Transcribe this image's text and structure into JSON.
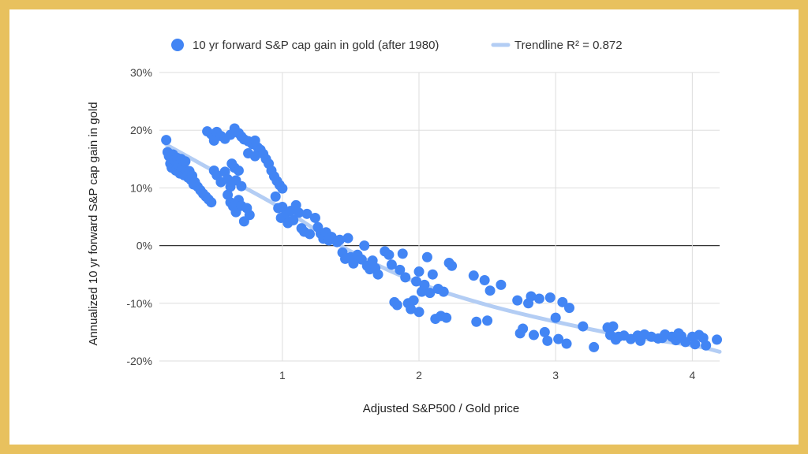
{
  "chart_data": {
    "type": "scatter",
    "xlabel": "Adjusted S&P500 / Gold price",
    "ylabel": "Annualized 10 yr forward S&P cap gain in gold",
    "xlim": [
      0.1,
      4.2
    ],
    "ylim": [
      -20,
      30
    ],
    "x_ticks": [
      1,
      2,
      3,
      4
    ],
    "x_tick_labels": [
      "1",
      "2",
      "3",
      "4"
    ],
    "y_ticks": [
      -20,
      -10,
      0,
      10,
      20,
      30
    ],
    "y_tick_labels": [
      "-20%",
      "-10%",
      "0%",
      "10%",
      "20%",
      "30%"
    ],
    "grid": true,
    "legend_position": "top",
    "legend": [
      {
        "label": "10 yr forward S&P cap gain in gold (after 1980)",
        "marker": "point"
      },
      {
        "label": "Trendline R² = 0.872",
        "marker": "line"
      }
    ],
    "colors": {
      "points": "#4285f4",
      "trendline": "#b3cdf4",
      "zero_line": "#333333",
      "grid": "#dddddd",
      "frame": "#e8c15e"
    },
    "series": [
      {
        "name": "10 yr forward S&P cap gain in gold (after 1980)",
        "points": [
          [
            0.15,
            18.3
          ],
          [
            0.16,
            16.2
          ],
          [
            0.17,
            15.5
          ],
          [
            0.18,
            14.2
          ],
          [
            0.19,
            13.5
          ],
          [
            0.2,
            15.8
          ],
          [
            0.21,
            14.8
          ],
          [
            0.22,
            13.0
          ],
          [
            0.23,
            15.2
          ],
          [
            0.24,
            14.0
          ],
          [
            0.25,
            12.5
          ],
          [
            0.26,
            15.0
          ],
          [
            0.27,
            13.6
          ],
          [
            0.28,
            12.2
          ],
          [
            0.29,
            14.6
          ],
          [
            0.3,
            13.0
          ],
          [
            0.31,
            11.8
          ],
          [
            0.32,
            12.9
          ],
          [
            0.33,
            11.4
          ],
          [
            0.34,
            12.1
          ],
          [
            0.35,
            10.6
          ],
          [
            0.36,
            11.0
          ],
          [
            0.38,
            10.2
          ],
          [
            0.4,
            9.6
          ],
          [
            0.42,
            9.0
          ],
          [
            0.44,
            8.5
          ],
          [
            0.46,
            8.0
          ],
          [
            0.48,
            7.5
          ],
          [
            0.45,
            19.8
          ],
          [
            0.48,
            19.3
          ],
          [
            0.5,
            18.2
          ],
          [
            0.52,
            19.7
          ],
          [
            0.55,
            19.0
          ],
          [
            0.58,
            18.5
          ],
          [
            0.62,
            19.2
          ],
          [
            0.65,
            20.3
          ],
          [
            0.68,
            19.5
          ],
          [
            0.7,
            18.9
          ],
          [
            0.72,
            18.4
          ],
          [
            0.75,
            18.1
          ],
          [
            0.78,
            17.6
          ],
          [
            0.8,
            18.2
          ],
          [
            0.82,
            17.0
          ],
          [
            0.84,
            16.6
          ],
          [
            0.86,
            15.9
          ],
          [
            0.88,
            15.0
          ],
          [
            0.9,
            14.2
          ],
          [
            0.92,
            13.0
          ],
          [
            0.94,
            12.0
          ],
          [
            0.96,
            11.2
          ],
          [
            0.98,
            10.5
          ],
          [
            1.0,
            9.9
          ],
          [
            0.75,
            16.0
          ],
          [
            0.8,
            15.5
          ],
          [
            0.5,
            13.0
          ],
          [
            0.52,
            12.2
          ],
          [
            0.55,
            11.0
          ],
          [
            0.58,
            12.8
          ],
          [
            0.6,
            11.5
          ],
          [
            0.62,
            10.2
          ],
          [
            0.63,
            14.2
          ],
          [
            0.65,
            13.5
          ],
          [
            0.68,
            13.0
          ],
          [
            0.6,
            8.8
          ],
          [
            0.62,
            7.5
          ],
          [
            0.64,
            6.8
          ],
          [
            0.66,
            5.8
          ],
          [
            0.68,
            7.9
          ],
          [
            0.7,
            6.9
          ],
          [
            0.72,
            4.2
          ],
          [
            0.74,
            6.5
          ],
          [
            0.76,
            5.3
          ],
          [
            0.66,
            11.3
          ],
          [
            0.7,
            10.3
          ],
          [
            0.95,
            8.5
          ],
          [
            0.97,
            6.5
          ],
          [
            0.99,
            4.8
          ],
          [
            1.0,
            6.7
          ],
          [
            1.02,
            5.2
          ],
          [
            1.04,
            3.9
          ],
          [
            1.06,
            6.0
          ],
          [
            1.08,
            4.4
          ],
          [
            1.1,
            7.0
          ],
          [
            1.12,
            5.7
          ],
          [
            1.14,
            3.0
          ],
          [
            1.16,
            2.4
          ],
          [
            1.18,
            5.5
          ],
          [
            1.2,
            2.0
          ],
          [
            1.24,
            4.8
          ],
          [
            1.26,
            3.2
          ],
          [
            1.28,
            2.1
          ],
          [
            1.3,
            1.2
          ],
          [
            1.32,
            2.3
          ],
          [
            1.34,
            0.9
          ],
          [
            1.36,
            1.5
          ],
          [
            1.4,
            0.6
          ],
          [
            1.42,
            1.0
          ],
          [
            1.44,
            -1.2
          ],
          [
            1.46,
            -2.3
          ],
          [
            1.48,
            1.3
          ],
          [
            1.5,
            -2.0
          ],
          [
            1.52,
            -3.1
          ],
          [
            1.55,
            -1.6
          ],
          [
            1.58,
            -2.4
          ],
          [
            1.6,
            0.0
          ],
          [
            1.62,
            -3.5
          ],
          [
            1.64,
            -4.1
          ],
          [
            1.66,
            -2.6
          ],
          [
            1.68,
            -3.9
          ],
          [
            1.7,
            -5.0
          ],
          [
            1.75,
            -1.0
          ],
          [
            1.78,
            -1.6
          ],
          [
            1.8,
            -3.3
          ],
          [
            1.82,
            -9.8
          ],
          [
            1.84,
            -10.3
          ],
          [
            1.86,
            -4.2
          ],
          [
            1.88,
            -1.4
          ],
          [
            1.9,
            -5.5
          ],
          [
            1.92,
            -10.0
          ],
          [
            1.94,
            -11.0
          ],
          [
            1.96,
            -9.5
          ],
          [
            1.98,
            -6.2
          ],
          [
            2.0,
            -4.5
          ],
          [
            2.0,
            -11.5
          ],
          [
            2.02,
            -8.0
          ],
          [
            2.04,
            -6.8
          ],
          [
            2.06,
            -2.0
          ],
          [
            2.08,
            -8.2
          ],
          [
            2.1,
            -5.0
          ],
          [
            2.12,
            -12.7
          ],
          [
            2.14,
            -7.5
          ],
          [
            2.16,
            -12.2
          ],
          [
            2.18,
            -8.0
          ],
          [
            2.2,
            -12.5
          ],
          [
            2.22,
            -3.0
          ],
          [
            2.24,
            -3.5
          ],
          [
            2.4,
            -5.2
          ],
          [
            2.42,
            -13.2
          ],
          [
            2.48,
            -6.0
          ],
          [
            2.5,
            -13.0
          ],
          [
            2.52,
            -7.8
          ],
          [
            2.6,
            -6.8
          ],
          [
            2.72,
            -9.5
          ],
          [
            2.74,
            -15.2
          ],
          [
            2.76,
            -14.4
          ],
          [
            2.8,
            -10.0
          ],
          [
            2.82,
            -8.8
          ],
          [
            2.84,
            -15.5
          ],
          [
            2.88,
            -9.2
          ],
          [
            2.92,
            -15.0
          ],
          [
            2.94,
            -16.5
          ],
          [
            2.96,
            -9.0
          ],
          [
            3.0,
            -12.5
          ],
          [
            3.02,
            -16.2
          ],
          [
            3.05,
            -9.8
          ],
          [
            3.08,
            -17.0
          ],
          [
            3.1,
            -10.8
          ],
          [
            3.2,
            -14.0
          ],
          [
            3.28,
            -17.6
          ],
          [
            3.38,
            -14.2
          ],
          [
            3.4,
            -15.5
          ],
          [
            3.42,
            -14.0
          ],
          [
            3.44,
            -16.3
          ],
          [
            3.46,
            -15.8
          ],
          [
            3.5,
            -15.6
          ],
          [
            3.55,
            -16.2
          ],
          [
            3.6,
            -15.6
          ],
          [
            3.62,
            -16.5
          ],
          [
            3.65,
            -15.4
          ],
          [
            3.7,
            -15.8
          ],
          [
            3.75,
            -16.1
          ],
          [
            3.78,
            -16.0
          ],
          [
            3.8,
            -15.4
          ],
          [
            3.85,
            -15.8
          ],
          [
            3.88,
            -16.4
          ],
          [
            3.9,
            -15.2
          ],
          [
            3.92,
            -15.7
          ],
          [
            3.95,
            -16.7
          ],
          [
            4.0,
            -15.8
          ],
          [
            4.02,
            -17.1
          ],
          [
            4.05,
            -15.5
          ],
          [
            4.08,
            -16.0
          ],
          [
            4.1,
            -17.3
          ],
          [
            4.18,
            -16.3
          ]
        ]
      },
      {
        "name": "Trendline R² = 0.872",
        "type": "line",
        "points": [
          [
            0.15,
            17.5
          ],
          [
            0.5,
            12.9
          ],
          [
            1.0,
            6.4
          ],
          [
            1.5,
            -1.0
          ],
          [
            2.0,
            -6.5
          ],
          [
            2.5,
            -10.3
          ],
          [
            3.0,
            -13.2
          ],
          [
            3.5,
            -15.6
          ],
          [
            4.0,
            -17.3
          ],
          [
            4.2,
            -18.4
          ]
        ]
      }
    ]
  }
}
